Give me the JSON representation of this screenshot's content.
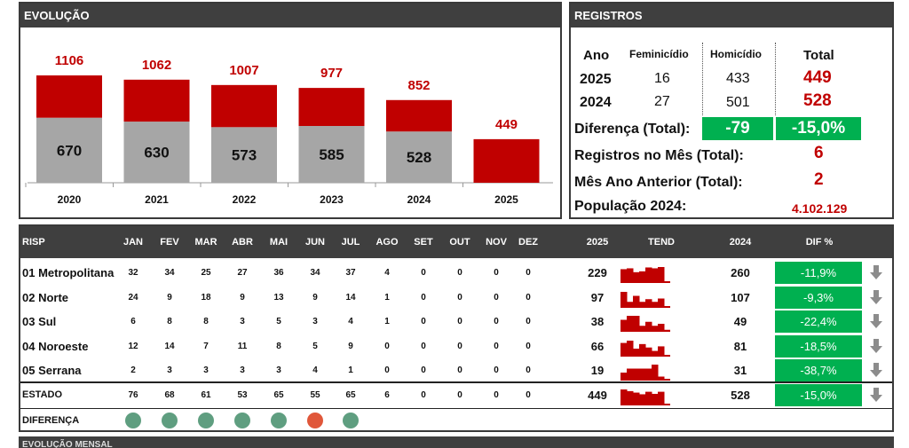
{
  "evolucao": {
    "header": "EVOLUÇÃO",
    "chart_data": {
      "type": "bar",
      "stacked": true,
      "categories": [
        "2020",
        "2021",
        "2022",
        "2023",
        "2024",
        "2025"
      ],
      "totals": [
        1106,
        1062,
        1007,
        977,
        852,
        449
      ],
      "series": [
        {
          "values": [
            670,
            630,
            573,
            585,
            528,
            null
          ],
          "color": "#a6a6a6"
        },
        {
          "values": [
            436,
            432,
            434,
            392,
            324,
            449
          ],
          "color": "#c00000"
        }
      ]
    }
  },
  "registros": {
    "header": "REGISTROS",
    "col_ano": "Ano",
    "col_fem": "Feminicídio",
    "col_hom": "Homicídio",
    "col_total": "Total",
    "rows": [
      {
        "ano": "2025",
        "fem": "16",
        "hom": "433",
        "total": "449"
      },
      {
        "ano": "2024",
        "fem": "27",
        "hom": "501",
        "total": "528"
      }
    ],
    "diferenca_label": "Diferença (Total):",
    "diferenca_abs": "-79",
    "diferenca_pct": "-15,0%",
    "mes_label": "Registros no Mês (Total):",
    "mes_value": "6",
    "mes_ant_label": "Mês Ano Anterior (Total):",
    "mes_ant_value": "2",
    "pop_label": "População 2024:",
    "pop_value": "4.102.129"
  },
  "table": {
    "headers": {
      "risp": "RISP",
      "months": [
        "JAN",
        "FEV",
        "MAR",
        "ABR",
        "MAI",
        "JUN",
        "JUL",
        "AGO",
        "SET",
        "OUT",
        "NOV",
        "DEZ"
      ],
      "y2025": "2025",
      "tend": "TEND",
      "y2024": "2024",
      "dif": "DIF %"
    },
    "rows": [
      {
        "name": "01 Metropolitana",
        "m": [
          "32",
          "34",
          "25",
          "27",
          "36",
          "34",
          "37",
          "4",
          "0",
          "0",
          "0",
          "0"
        ],
        "y2025": "229",
        "y2024": "260",
        "dif": "-11,9%"
      },
      {
        "name": "02 Norte",
        "m": [
          "24",
          "9",
          "18",
          "9",
          "13",
          "9",
          "14",
          "1",
          "0",
          "0",
          "0",
          "0"
        ],
        "y2025": "97",
        "y2024": "107",
        "dif": "-9,3%"
      },
      {
        "name": "03 Sul",
        "m": [
          "6",
          "8",
          "8",
          "3",
          "5",
          "3",
          "4",
          "1",
          "0",
          "0",
          "0",
          "0"
        ],
        "y2025": "38",
        "y2024": "49",
        "dif": "-22,4%"
      },
      {
        "name": "04 Noroeste",
        "m": [
          "12",
          "14",
          "7",
          "11",
          "8",
          "5",
          "9",
          "0",
          "0",
          "0",
          "0",
          "0"
        ],
        "y2025": "66",
        "y2024": "81",
        "dif": "-18,5%"
      },
      {
        "name": "05 Serrana",
        "m": [
          "2",
          "3",
          "3",
          "3",
          "3",
          "4",
          "1",
          "0",
          "0",
          "0",
          "0",
          "0"
        ],
        "y2025": "19",
        "y2024": "31",
        "dif": "-38,7%"
      }
    ],
    "estado": {
      "name": "ESTADO",
      "m": [
        "76",
        "68",
        "61",
        "53",
        "65",
        "55",
        "65",
        "6",
        "0",
        "0",
        "0",
        "0"
      ],
      "y2025": "449",
      "y2024": "528",
      "dif": "-15,0%"
    },
    "diferenca": {
      "name": "DIFERENÇA",
      "dots": [
        "#5f9e80",
        "#5f9e80",
        "#5f9e80",
        "#5f9e80",
        "#5f9e80",
        "#e0573a",
        "#5f9e80"
      ]
    },
    "arrow_icon": "arrow-down-icon"
  },
  "footer_header": "EVOLUÇÃO MENSAL"
}
